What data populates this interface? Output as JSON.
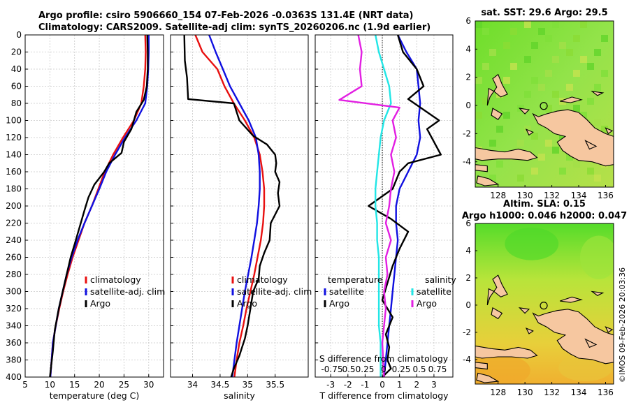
{
  "header": {
    "title_line1": "Argo profile: csiro 5906660_154 07-Feb-2026 -0.0363S 131.4E (NRT data)",
    "title_line2": "Climatology: CARS2009. Satellite-adj clim: synTS_20260206.nc (1.9d earlier)"
  },
  "credit": "©IMOS 09-Feb-2026 20:03:36",
  "colors": {
    "climatology": "#e81010",
    "satellite": "#1010e0",
    "argo": "#000000",
    "sal_satellite": "#22e6e6",
    "sal_argo": "#e21fe2",
    "land": "#f6c7a0",
    "grid": "#c8c8c8"
  },
  "chart_data": [
    {
      "type": "line",
      "id": "temperature",
      "xlabel": "temperature (deg C)",
      "ylabel": "",
      "xlim": [
        5,
        33
      ],
      "ylim": [
        0,
        400
      ],
      "yreversed": true,
      "xticks": [
        5,
        10,
        15,
        20,
        25,
        30
      ],
      "yticks": [
        0,
        20,
        40,
        60,
        80,
        100,
        120,
        140,
        160,
        180,
        200,
        220,
        240,
        260,
        280,
        300,
        320,
        340,
        360,
        380,
        400
      ],
      "legend": {
        "placement": "lower-right",
        "entries": [
          "climatology",
          "satellite-adj. clim",
          "Argo"
        ]
      },
      "series": [
        {
          "name": "climatology",
          "color": "#e81010",
          "x": [
            29.3,
            29.4,
            29.3,
            29.0,
            28.5,
            27.0,
            24.8,
            22.8,
            21.1,
            19.8,
            18.5,
            17.0,
            15.8,
            14.6,
            13.6,
            12.7,
            11.9,
            11.2,
            10.6,
            10.1
          ],
          "y": [
            0,
            20,
            40,
            60,
            80,
            100,
            120,
            140,
            160,
            180,
            200,
            220,
            240,
            260,
            280,
            300,
            320,
            340,
            360,
            400
          ]
        },
        {
          "name": "satellite-adj. clim",
          "color": "#1010e0",
          "x": [
            30.0,
            30.0,
            29.9,
            29.7,
            29.3,
            27.5,
            25.2,
            23.2,
            21.4,
            20.0,
            18.5,
            17.0,
            15.6,
            14.4,
            13.4,
            12.6,
            11.8,
            11.2,
            10.6,
            10.1
          ],
          "y": [
            0,
            20,
            40,
            60,
            80,
            100,
            120,
            140,
            160,
            180,
            200,
            220,
            240,
            260,
            280,
            300,
            320,
            340,
            360,
            400
          ]
        },
        {
          "name": "Argo",
          "color": "#000000",
          "x": [
            29.7,
            29.8,
            29.8,
            29.6,
            29.0,
            27.5,
            26.5,
            25.0,
            24.5,
            22.0,
            21.0,
            19.0,
            17.8,
            17.0,
            16.0,
            15.0,
            14.2,
            13.4,
            12.6,
            11.8,
            11.0,
            10.6,
            10.2,
            10.0
          ],
          "y": [
            0,
            20,
            40,
            60,
            76,
            90,
            110,
            125,
            138,
            150,
            160,
            175,
            190,
            205,
            225,
            245,
            260,
            280,
            300,
            320,
            345,
            370,
            390,
            400
          ]
        }
      ]
    },
    {
      "type": "line",
      "id": "salinity",
      "xlabel": "salinity",
      "xlim": [
        33.6,
        36.1
      ],
      "ylim": [
        0,
        400
      ],
      "yreversed": true,
      "xticks": [
        34,
        34.5,
        35,
        35.5
      ],
      "xticklabels": [
        "34",
        "34.5",
        "35",
        "35.5"
      ],
      "legend": {
        "placement": "lower-right",
        "entries": [
          "climatology",
          "satellite-adj. clim",
          "Argo"
        ]
      },
      "series": [
        {
          "name": "climatology",
          "color": "#e81010",
          "x": [
            34.05,
            34.18,
            34.45,
            34.58,
            34.75,
            34.95,
            35.12,
            35.22,
            35.27,
            35.3,
            35.3,
            35.28,
            35.24,
            35.18,
            35.12,
            35.05,
            34.98,
            34.92,
            34.85,
            34.8,
            34.76
          ],
          "y": [
            0,
            20,
            40,
            60,
            80,
            100,
            120,
            140,
            160,
            180,
            200,
            220,
            240,
            260,
            280,
            300,
            320,
            340,
            360,
            380,
            400
          ]
        },
        {
          "name": "satellite-adj. clim",
          "color": "#1010e0",
          "x": [
            34.3,
            34.42,
            34.55,
            34.68,
            34.85,
            35.02,
            35.15,
            35.2,
            35.22,
            35.22,
            35.2,
            35.17,
            35.12,
            35.07,
            35.01,
            34.95,
            34.9,
            34.85,
            34.8,
            34.76,
            34.72
          ],
          "y": [
            0,
            20,
            40,
            60,
            80,
            100,
            120,
            140,
            160,
            180,
            200,
            220,
            240,
            260,
            280,
            300,
            320,
            340,
            360,
            380,
            400
          ]
        },
        {
          "name": "Argo",
          "color": "#000000",
          "x": [
            33.85,
            33.86,
            33.9,
            33.92,
            34.75,
            34.85,
            35.1,
            35.35,
            35.5,
            35.52,
            35.5,
            35.58,
            35.55,
            35.58,
            35.42,
            35.4,
            35.3,
            35.22,
            35.2,
            35.1,
            35.05,
            35.0,
            34.95,
            34.9,
            34.85,
            34.75,
            34.7
          ],
          "y": [
            0,
            30,
            50,
            75,
            80,
            100,
            118,
            128,
            140,
            150,
            160,
            172,
            185,
            200,
            220,
            240,
            255,
            270,
            285,
            300,
            320,
            340,
            355,
            365,
            375,
            390,
            400
          ]
        }
      ]
    },
    {
      "type": "line",
      "id": "difference",
      "xlabel": "T difference from climatology",
      "xlim": [
        -3.9,
        4.1
      ],
      "ylim": [
        0,
        400
      ],
      "yreversed": true,
      "xticks": [
        -3,
        -2,
        -1,
        0,
        1,
        2,
        3
      ],
      "xticklabels": [
        "-3",
        "-2",
        "-1",
        "0",
        "1",
        "2",
        "3"
      ],
      "top_axis_label": "S difference from climatology",
      "top_axis_ticklabels": [
        "-0.75",
        "0.5",
        "0.25",
        "0",
        "0.25",
        "0.5",
        "0.75"
      ],
      "legend": {
        "placement": "lower-center",
        "entries": [
          "temperature",
          "satellite",
          "Argo",
          "salinity",
          "satellite",
          "Argo"
        ]
      },
      "series": [
        {
          "name": "temperature satellite",
          "color": "#1010e0",
          "x": [
            0.9,
            1.4,
            2.0,
            2.1,
            2.2,
            2.1,
            2.2,
            2.0,
            1.5,
            1.0,
            0.8,
            0.8,
            0.9,
            0.8,
            0.7,
            0.6,
            0.5,
            0.4,
            0.3,
            0.2,
            0.1
          ],
          "y": [
            0,
            20,
            40,
            60,
            80,
            100,
            120,
            140,
            160,
            180,
            200,
            220,
            240,
            260,
            280,
            300,
            320,
            340,
            360,
            380,
            400
          ]
        },
        {
          "name": "temperature Argo",
          "color": "#000000",
          "x": [
            0.9,
            1.2,
            2.0,
            2.4,
            1.5,
            3.3,
            2.6,
            3.4,
            1.5,
            1.0,
            0.6,
            -0.8,
            0.5,
            1.5,
            1.0,
            0.6,
            0.3,
            0.0,
            0.6,
            0.2,
            0.4,
            0.3,
            0.5,
            0.0
          ],
          "y": [
            0,
            20,
            40,
            60,
            75,
            100,
            110,
            140,
            150,
            160,
            180,
            200,
            215,
            230,
            250,
            270,
            290,
            310,
            330,
            350,
            365,
            380,
            390,
            400
          ]
        },
        {
          "name": "salinity satellite",
          "color": "#22e6e6",
          "x": [
            -0.4,
            -0.2,
            0.1,
            0.4,
            0.5,
            0.1,
            -0.1,
            -0.2,
            -0.3,
            -0.4,
            -0.4,
            -0.3,
            -0.3,
            -0.2,
            -0.2,
            -0.2,
            -0.2,
            -0.2,
            -0.1,
            -0.1,
            -0.1
          ],
          "y": [
            0,
            20,
            40,
            60,
            80,
            100,
            120,
            140,
            160,
            180,
            200,
            220,
            240,
            260,
            280,
            300,
            320,
            340,
            360,
            380,
            400
          ]
        },
        {
          "name": "salinity Argo",
          "color": "#e21fe2",
          "x": [
            -1.4,
            -1.2,
            -1.3,
            -1.2,
            -2.5,
            1.0,
            0.6,
            0.8,
            0.5,
            0.7,
            0.5,
            0.4,
            0.2,
            0.5,
            0.2,
            0.3,
            0.1,
            0.2,
            0.1,
            0.0,
            0.1
          ],
          "y": [
            0,
            20,
            40,
            60,
            76,
            85,
            100,
            120,
            140,
            160,
            180,
            200,
            220,
            240,
            260,
            280,
            300,
            320,
            340,
            360,
            400
          ]
        }
      ]
    },
    {
      "type": "heatmap",
      "id": "sst_map",
      "title": "sat. SST: 29.6 Argo: 29.5",
      "xlim": [
        126.3,
        136.6
      ],
      "ylim": [
        -5.8,
        6
      ],
      "xticks": [
        128,
        130,
        132,
        134,
        136
      ],
      "yticks": [
        -4,
        -2,
        0,
        2,
        4,
        6
      ],
      "float_position": [
        131.4,
        -0.0363
      ]
    },
    {
      "type": "heatmap",
      "id": "sla_map",
      "title_line1": "Altim. SLA: 0.15",
      "title_line2": "Argo h1000: 0.046 h2000: 0.047",
      "xlim": [
        126.3,
        136.6
      ],
      "ylim": [
        -5.8,
        6
      ],
      "xticks": [
        128,
        130,
        132,
        134,
        136
      ],
      "yticks": [
        -4,
        -2,
        0,
        2,
        4,
        6
      ],
      "float_position": [
        131.4,
        -0.0363
      ]
    }
  ]
}
